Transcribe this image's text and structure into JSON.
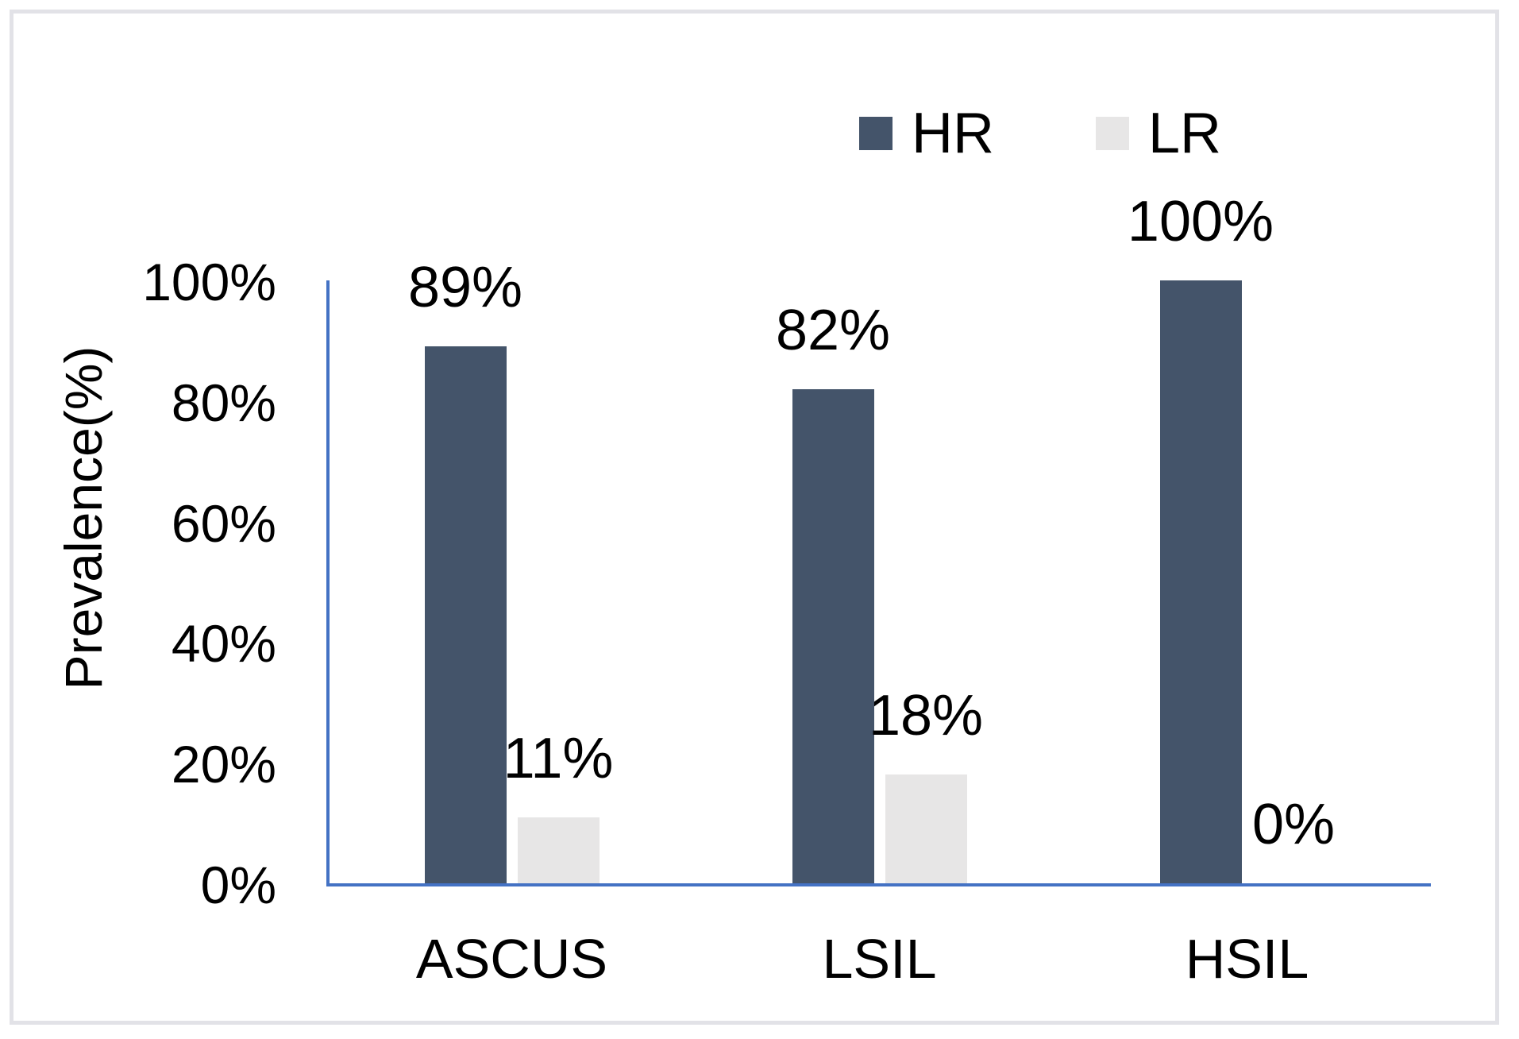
{
  "chart_data": {
    "type": "bar",
    "title": "",
    "categories": [
      "ASCUS",
      "LSIL",
      "HSIL"
    ],
    "series": [
      {
        "name": "HR",
        "color": "#44546A",
        "values": [
          89,
          82,
          100
        ],
        "data_labels": [
          "89%",
          "82%",
          "100%"
        ]
      },
      {
        "name": "LR",
        "color": "#E7E6E6",
        "values": [
          11,
          18,
          0
        ],
        "data_labels": [
          "11%",
          "18%",
          "0%"
        ]
      }
    ],
    "xlabel": "",
    "ylabel": "Prevalence(%)",
    "ylim": [
      0,
      100
    ],
    "y_ticks": [
      {
        "value": 100,
        "label": "100%"
      },
      {
        "value": 80,
        "label": "80%"
      },
      {
        "value": 60,
        "label": "60%"
      },
      {
        "value": 40,
        "label": "40%"
      },
      {
        "value": 20,
        "label": "20%"
      },
      {
        "value": 0,
        "label": "0%"
      }
    ],
    "legend_position": "top",
    "grid": false
  },
  "colors": {
    "axis_line": "#4472C4",
    "text": "#000000",
    "figure_border": "#e2e2e7",
    "background": "#ffffff"
  }
}
